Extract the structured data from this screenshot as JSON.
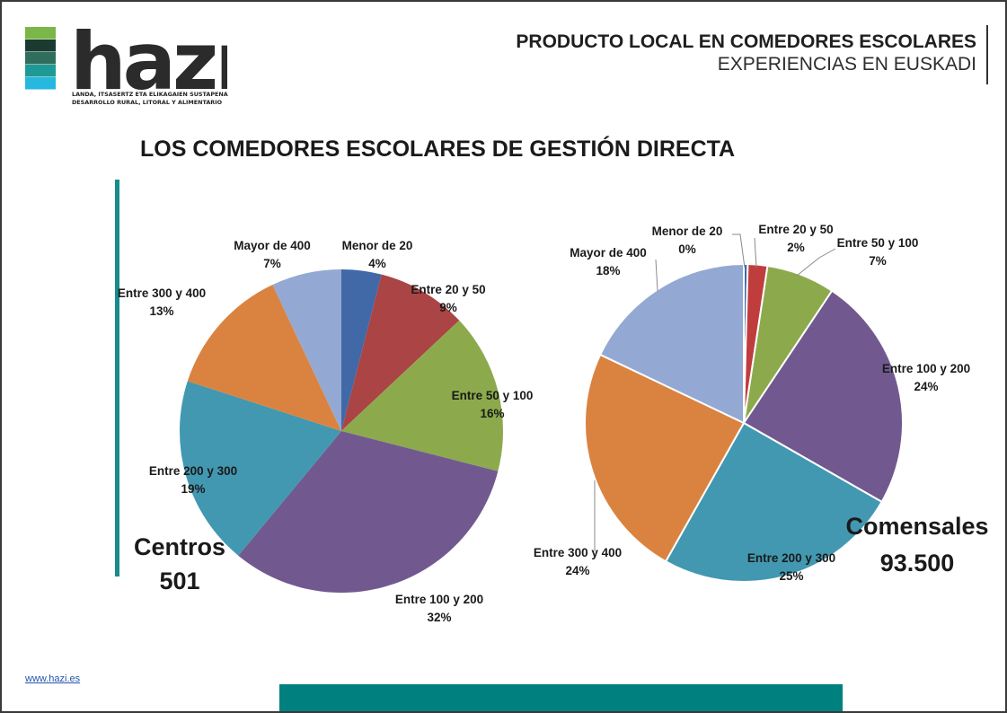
{
  "header": {
    "title": "PRODUCTO LOCAL EN COMEDORES ESCOLARES",
    "subtitle": "EXPERIENCIAS EN EUSKADI"
  },
  "logo": {
    "wordmark": "hazı",
    "tagline_line1": "LANDA, ITSASERTZ ETA ELIKAGAIEN SUSTAPENA",
    "tagline_line2": "DESARROLLO RURAL, LITORAL Y ALIMENTARIO",
    "stripe_colors": [
      "#7ab648",
      "#1b3b30",
      "#2f6e5c",
      "#1d9a96",
      "#27b8df"
    ]
  },
  "main_title": "LOS COMEDORES ESCOLARES DE GESTIÓN DIRECTA",
  "footer": {
    "link": "www.hazi.es"
  },
  "colors": {
    "accent": "#168c8c",
    "footer_bar": "#00807f"
  },
  "chart_data": [
    {
      "type": "pie",
      "title": "",
      "big_label": [
        "Centros",
        "501"
      ],
      "categories": [
        "Menor de 20",
        "Entre 20 y 50",
        "Entre 50 y 100",
        "Entre 100 y 200",
        "Entre 200 y 300",
        "Entre 300 y 400",
        "Mayor de 400"
      ],
      "values": [
        4,
        9,
        16,
        32,
        19,
        13,
        7
      ],
      "value_labels": [
        "4%",
        "9%",
        "16%",
        "32%",
        "19%",
        "13%",
        "7%"
      ],
      "colors": [
        "#4169a8",
        "#ab4444",
        "#8caa4c",
        "#715990",
        "#4298b0",
        "#da8340",
        "#93a9d3"
      ]
    },
    {
      "type": "pie",
      "title": "",
      "big_label": [
        "Comensales",
        "93.500"
      ],
      "categories": [
        "Menor de 20",
        "Entre 20 y 50",
        "Entre 50 y 100",
        "Entre 100 y 200",
        "Entre 200 y 300",
        "Entre 300 y 400",
        "Mayor de 400"
      ],
      "values": [
        0.4,
        2,
        7,
        24,
        25,
        24,
        18
      ],
      "value_labels": [
        "0%",
        "2%",
        "7%",
        "24%",
        "25%",
        "24%",
        "18%"
      ],
      "colors": [
        "#4169a8",
        "#c03d3d",
        "#8caa4c",
        "#715990",
        "#4298b0",
        "#da8340",
        "#93a9d3"
      ]
    }
  ]
}
